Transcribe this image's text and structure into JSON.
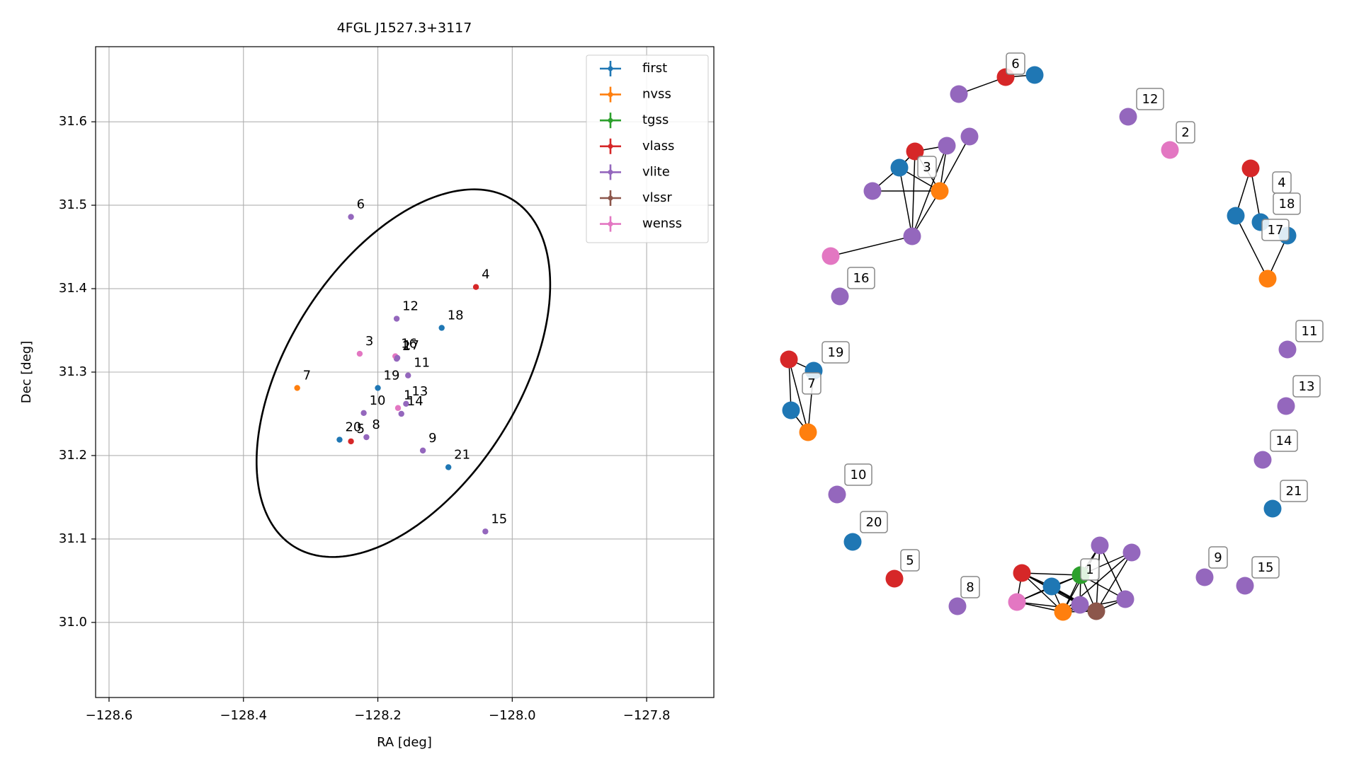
{
  "chart_data": [
    {
      "type": "scatter",
      "title": "4FGL J1527.3+3117",
      "xlabel": "RA [deg]",
      "ylabel": "Dec [deg]",
      "xlim": [
        -128.62,
        -127.7
      ],
      "ylim": [
        30.91,
        31.69
      ],
      "xticks": [
        -128.6,
        -128.4,
        -128.2,
        -128.0,
        -127.8
      ],
      "xtick_labels": [
        "−128.6",
        "−128.4",
        "−128.2",
        "−128.0",
        "−127.8"
      ],
      "yticks": [
        31.0,
        31.1,
        31.2,
        31.3,
        31.4,
        31.5,
        31.6
      ],
      "ytick_labels": [
        "31.0",
        "31.1",
        "31.2",
        "31.3",
        "31.4",
        "31.5",
        "31.6"
      ],
      "grid": true,
      "legend_position": "upper-right",
      "ellipse": {
        "center_ra": -128.162,
        "center_dec": 31.2987,
        "semi_major_deg": 0.267,
        "semi_minor_deg": 0.158,
        "position_angle_deg": 44.5
      },
      "series": [
        {
          "name": "first",
          "color": "#1f77b4"
        },
        {
          "name": "nvss",
          "color": "#ff7f0e"
        },
        {
          "name": "tgss",
          "color": "#2ca02c"
        },
        {
          "name": "vlass",
          "color": "#d62728"
        },
        {
          "name": "vlite",
          "color": "#9467bd"
        },
        {
          "name": "vlssr",
          "color": "#8c564b"
        },
        {
          "name": "wenss",
          "color": "#e377c2"
        }
      ],
      "points": [
        {
          "label": "1",
          "ra": -128.17,
          "dec": 31.257,
          "color": "#e377c2"
        },
        {
          "label": "2",
          "ra": -128.172,
          "dec": 31.316,
          "color": "#9467bd"
        },
        {
          "label": "3",
          "ra": -128.227,
          "dec": 31.322,
          "color": "#e377c2"
        },
        {
          "label": "4",
          "ra": -128.054,
          "dec": 31.402,
          "color": "#d62728"
        },
        {
          "label": "5",
          "ra": -128.24,
          "dec": 31.217,
          "color": "#d62728"
        },
        {
          "label": "6",
          "ra": -128.24,
          "dec": 31.486,
          "color": "#9467bd"
        },
        {
          "label": "7",
          "ra": -128.32,
          "dec": 31.281,
          "color": "#ff7f0e"
        },
        {
          "label": "8",
          "ra": -128.217,
          "dec": 31.222,
          "color": "#9467bd"
        },
        {
          "label": "9",
          "ra": -128.133,
          "dec": 31.206,
          "color": "#9467bd"
        },
        {
          "label": "10",
          "ra": -128.221,
          "dec": 31.251,
          "color": "#9467bd"
        },
        {
          "label": "11",
          "ra": -128.155,
          "dec": 31.296,
          "color": "#9467bd"
        },
        {
          "label": "12",
          "ra": -128.172,
          "dec": 31.364,
          "color": "#9467bd"
        },
        {
          "label": "13",
          "ra": -128.158,
          "dec": 31.262,
          "color": "#9467bd"
        },
        {
          "label": "14",
          "ra": -128.165,
          "dec": 31.25,
          "color": "#9467bd"
        },
        {
          "label": "15",
          "ra": -128.04,
          "dec": 31.109,
          "color": "#9467bd"
        },
        {
          "label": "16",
          "ra": -128.174,
          "dec": 31.319,
          "color": "#e377c2"
        },
        {
          "label": "17",
          "ra": -128.171,
          "dec": 31.317,
          "color": "#9467bd"
        },
        {
          "label": "18",
          "ra": -128.105,
          "dec": 31.353,
          "color": "#1f77b4"
        },
        {
          "label": "19",
          "ra": -128.2,
          "dec": 31.281,
          "color": "#1f77b4"
        },
        {
          "label": "20",
          "ra": -128.257,
          "dec": 31.219,
          "color": "#1f77b4"
        },
        {
          "label": "21",
          "ra": -128.095,
          "dec": 31.186,
          "color": "#1f77b4"
        }
      ]
    },
    {
      "type": "graph",
      "nodes": [
        {
          "id": "1",
          "color": "#2ca02c"
        },
        {
          "id": "2",
          "color": "#e377c2"
        },
        {
          "id": "3",
          "color": "#ff7f0e"
        },
        {
          "id": "4",
          "color": "#d62728"
        },
        {
          "id": "5",
          "color": "#d62728"
        },
        {
          "id": "6",
          "color": "#d62728"
        },
        {
          "id": "7",
          "color": "#1f77b4"
        },
        {
          "id": "8",
          "color": "#9467bd"
        },
        {
          "id": "9",
          "color": "#9467bd"
        },
        {
          "id": "10",
          "color": "#9467bd"
        },
        {
          "id": "11",
          "color": "#9467bd"
        },
        {
          "id": "12",
          "color": "#9467bd"
        },
        {
          "id": "13",
          "color": "#9467bd"
        },
        {
          "id": "14",
          "color": "#9467bd"
        },
        {
          "id": "15",
          "color": "#9467bd"
        },
        {
          "id": "16",
          "color": "#9467bd"
        },
        {
          "id": "17",
          "color": "#1f77b4"
        },
        {
          "id": "18",
          "color": "#1f77b4"
        },
        {
          "id": "19",
          "color": "#1f77b4"
        },
        {
          "id": "20",
          "color": "#1f77b4"
        },
        {
          "id": "21",
          "color": "#1f77b4"
        },
        {
          "id": "c1a",
          "color": "#d62728"
        },
        {
          "id": "c1b",
          "color": "#1f77b4"
        },
        {
          "id": "c1c",
          "color": "#e377c2"
        },
        {
          "id": "c1d",
          "color": "#ff7f0e"
        },
        {
          "id": "c1e",
          "color": "#9467bd"
        },
        {
          "id": "c1f",
          "color": "#8c564b"
        },
        {
          "id": "c1g",
          "color": "#9467bd"
        },
        {
          "id": "c1h",
          "color": "#9467bd"
        },
        {
          "id": "c1i",
          "color": "#9467bd"
        },
        {
          "id": "c3a",
          "color": "#d62728"
        },
        {
          "id": "c3b",
          "color": "#9467bd"
        },
        {
          "id": "c3c",
          "color": "#9467bd"
        },
        {
          "id": "c3d",
          "color": "#1f77b4"
        },
        {
          "id": "c3e",
          "color": "#9467bd"
        },
        {
          "id": "c3f",
          "color": "#9467bd"
        },
        {
          "id": "c3g",
          "color": "#e377c2"
        },
        {
          "id": "c4a",
          "color": "#1f77b4"
        },
        {
          "id": "c4b",
          "color": "#ff7f0e"
        },
        {
          "id": "c6a",
          "color": "#1f77b4"
        },
        {
          "id": "c6b",
          "color": "#9467bd"
        },
        {
          "id": "c7a",
          "color": "#d62728"
        },
        {
          "id": "c7b",
          "color": "#ff7f0e"
        }
      ],
      "edges": [
        [
          "6",
          "c6a"
        ],
        [
          "6",
          "c6b"
        ],
        [
          "3",
          "c3a"
        ],
        [
          "3",
          "c3b"
        ],
        [
          "3",
          "c3c"
        ],
        [
          "3",
          "c3d"
        ],
        [
          "3",
          "c3e"
        ],
        [
          "3",
          "c3f"
        ],
        [
          "c3a",
          "c3b"
        ],
        [
          "c3a",
          "c3d"
        ],
        [
          "c3a",
          "c3f"
        ],
        [
          "c3b",
          "c3f"
        ],
        [
          "c3d",
          "c3e"
        ],
        [
          "c3d",
          "c3f"
        ],
        [
          "c3d",
          "c3a"
        ],
        [
          "c3f",
          "c3g"
        ],
        [
          "4",
          "c4a"
        ],
        [
          "4",
          "18"
        ],
        [
          "17",
          "c4b"
        ],
        [
          "c4a",
          "c4b"
        ],
        [
          "c7a",
          "19"
        ],
        [
          "c7a",
          "7"
        ],
        [
          "c7a",
          "c7b"
        ],
        [
          "19",
          "c7b"
        ],
        [
          "7",
          "c7b"
        ],
        [
          "1",
          "c1a"
        ],
        [
          "1",
          "c1b"
        ],
        [
          "1",
          "c1d"
        ],
        [
          "1",
          "c1e"
        ],
        [
          "1",
          "c1f"
        ],
        [
          "1",
          "c1g"
        ],
        [
          "1",
          "c1h"
        ],
        [
          "1",
          "c1i"
        ],
        [
          "1",
          "c1c"
        ],
        [
          "c1a",
          "c1b"
        ],
        [
          "c1a",
          "c1c"
        ],
        [
          "c1a",
          "c1d"
        ],
        [
          "c1a",
          "c1e"
        ],
        [
          "c1a",
          "c1f"
        ],
        [
          "c1b",
          "c1c"
        ],
        [
          "c1b",
          "c1d"
        ],
        [
          "c1b",
          "c1e"
        ],
        [
          "c1b",
          "c1f"
        ],
        [
          "c1c",
          "c1d"
        ],
        [
          "c1c",
          "c1f"
        ],
        [
          "c1d",
          "c1e"
        ],
        [
          "c1d",
          "c1f"
        ],
        [
          "c1e",
          "c1f"
        ],
        [
          "c1g",
          "c1d"
        ],
        [
          "c1g",
          "c1f"
        ],
        [
          "c1h",
          "c1d"
        ],
        [
          "c1h",
          "c1f"
        ],
        [
          "c1i",
          "c1f"
        ],
        [
          "c1i",
          "c1d"
        ],
        [
          "c1g",
          "c1i"
        ]
      ]
    }
  ]
}
